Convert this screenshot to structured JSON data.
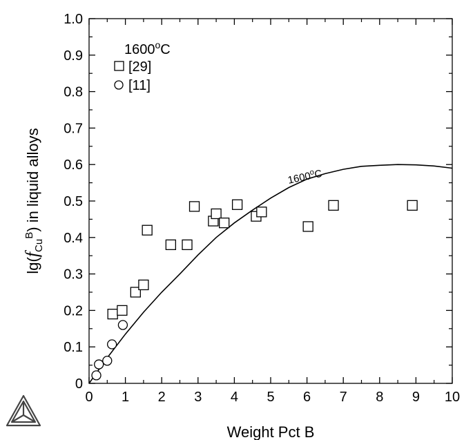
{
  "chart_data": {
    "type": "scatter",
    "xlabel": "Weight Pct B",
    "ylabel": {
      "prefix": "lg(",
      "symbol": "f",
      "subscript": "Cu",
      "superscript": "B",
      "suffix": ") in liquid alloys"
    },
    "xlim": [
      0,
      10
    ],
    "ylim": [
      0,
      1.0
    ],
    "xticks": [
      "0",
      "1",
      "2",
      "3",
      "4",
      "5",
      "6",
      "7",
      "8",
      "9",
      "10"
    ],
    "yticks": [
      "0",
      "0.1",
      "0.2",
      "0.3",
      "0.4",
      "0.5",
      "0.6",
      "0.7",
      "0.8",
      "0.9",
      "1.0"
    ],
    "grid": false,
    "legend": {
      "title_value": "1600",
      "title_unit_sup": "o",
      "title_unit": "C",
      "placement": "top-left",
      "entries": [
        {
          "label": "[29]",
          "marker": "square"
        },
        {
          "label": "[11]",
          "marker": "circle"
        }
      ]
    },
    "series": [
      {
        "name": "[29]",
        "marker": "square",
        "points": [
          [
            0.65,
            0.19
          ],
          [
            0.91,
            0.2
          ],
          [
            1.28,
            0.25
          ],
          [
            1.5,
            0.27
          ],
          [
            1.6,
            0.42
          ],
          [
            2.25,
            0.38
          ],
          [
            2.7,
            0.38
          ],
          [
            2.9,
            0.485
          ],
          [
            3.42,
            0.445
          ],
          [
            3.5,
            0.465
          ],
          [
            3.72,
            0.44
          ],
          [
            4.08,
            0.49
          ],
          [
            4.6,
            0.458
          ],
          [
            4.75,
            0.47
          ],
          [
            6.03,
            0.43
          ],
          [
            6.73,
            0.488
          ],
          [
            8.9,
            0.488
          ]
        ]
      },
      {
        "name": "[11]",
        "marker": "circle",
        "points": [
          [
            0.2,
            0.022
          ],
          [
            0.27,
            0.052
          ],
          [
            0.5,
            0.062
          ],
          [
            0.63,
            0.107
          ],
          [
            0.93,
            0.16
          ]
        ]
      }
    ],
    "curve": {
      "label_value": "1600",
      "label_sup": "o",
      "label_unit": "C",
      "points": [
        [
          0,
          0
        ],
        [
          0.5,
          0.07
        ],
        [
          1,
          0.135
        ],
        [
          1.5,
          0.195
        ],
        [
          2,
          0.25
        ],
        [
          2.5,
          0.3
        ],
        [
          3,
          0.352
        ],
        [
          3.5,
          0.4
        ],
        [
          4,
          0.44
        ],
        [
          4.5,
          0.475
        ],
        [
          5,
          0.508
        ],
        [
          5.5,
          0.537
        ],
        [
          6,
          0.56
        ],
        [
          6.5,
          0.575
        ],
        [
          7,
          0.587
        ],
        [
          7.5,
          0.595
        ],
        [
          8,
          0.598
        ],
        [
          8.5,
          0.6
        ],
        [
          9,
          0.599
        ],
        [
          9.5,
          0.596
        ],
        [
          10,
          0.59
        ]
      ]
    }
  }
}
